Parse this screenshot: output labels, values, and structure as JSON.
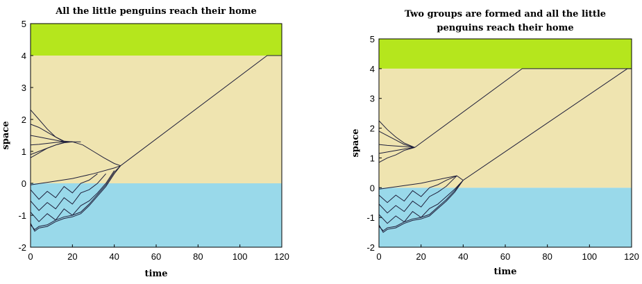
{
  "colors": {
    "land": "#b5e61d",
    "sand": "#efe4b0",
    "sea": "#99d9ea",
    "trajectory": "#1e1e3a"
  },
  "chart_data": [
    {
      "type": "line",
      "title_lines": [
        "All the little penguins reach their home"
      ],
      "xlabel": "time",
      "ylabel": "space",
      "xlim": [
        0,
        120
      ],
      "ylim": [
        -2,
        5
      ],
      "xticks": [
        "0",
        "20",
        "40",
        "60",
        "80",
        "100",
        "120"
      ],
      "yticks": [
        "-2",
        "-1",
        "0",
        "1",
        "2",
        "3",
        "4",
        "5"
      ],
      "bands": [
        {
          "name": "sea",
          "from": -2,
          "to": 0
        },
        {
          "name": "sand",
          "from": 0,
          "to": 4
        },
        {
          "name": "land",
          "from": 4,
          "to": 5
        }
      ],
      "series": [
        {
          "x": [
            0,
            4,
            8,
            12,
            16,
            20,
            24
          ],
          "y": [
            2.3,
            2.0,
            1.7,
            1.45,
            1.3,
            1.3,
            1.3
          ]
        },
        {
          "x": [
            0,
            4,
            8,
            12,
            16,
            20
          ],
          "y": [
            1.85,
            1.75,
            1.6,
            1.45,
            1.32,
            1.3
          ]
        },
        {
          "x": [
            0,
            4,
            8,
            12,
            16,
            20
          ],
          "y": [
            1.5,
            1.45,
            1.4,
            1.35,
            1.3,
            1.3
          ]
        },
        {
          "x": [
            0,
            4,
            8,
            12,
            16,
            20
          ],
          "y": [
            1.2,
            1.22,
            1.25,
            1.28,
            1.3,
            1.3
          ]
        },
        {
          "x": [
            0,
            4,
            8,
            12,
            16,
            20
          ],
          "y": [
            0.9,
            1.0,
            1.1,
            1.2,
            1.27,
            1.3
          ]
        },
        {
          "x": [
            0,
            4,
            8,
            12,
            16
          ],
          "y": [
            0.8,
            0.95,
            1.1,
            1.2,
            1.28
          ]
        },
        {
          "x": [
            20,
            25,
            30,
            35,
            40,
            43
          ],
          "y": [
            1.3,
            1.2,
            1.0,
            0.8,
            0.62,
            0.55
          ]
        },
        {
          "x": [
            0,
            10,
            20,
            30,
            40,
            43
          ],
          "y": [
            -0.05,
            0.05,
            0.15,
            0.3,
            0.48,
            0.55
          ]
        },
        {
          "x": [
            0,
            4,
            8,
            12,
            16,
            20,
            24,
            28,
            32
          ],
          "y": [
            -0.2,
            -0.5,
            -0.25,
            -0.45,
            -0.1,
            -0.3,
            0.0,
            0.1,
            0.3
          ]
        },
        {
          "x": [
            0,
            4,
            8,
            12,
            16,
            20,
            24,
            28,
            32,
            36
          ],
          "y": [
            -0.55,
            -0.85,
            -0.6,
            -0.8,
            -0.45,
            -0.65,
            -0.3,
            -0.2,
            0.0,
            0.3
          ]
        },
        {
          "x": [
            0,
            4,
            8,
            12,
            16,
            20,
            24,
            28,
            32,
            36,
            40
          ],
          "y": [
            -0.9,
            -1.2,
            -0.95,
            -1.15,
            -0.8,
            -1.0,
            -0.7,
            -0.55,
            -0.3,
            0.0,
            0.4
          ]
        },
        {
          "x": [
            0,
            2,
            4,
            8,
            12,
            16,
            20,
            24,
            28,
            32,
            36,
            40,
            43
          ],
          "y": [
            -1.25,
            -1.5,
            -1.4,
            -1.35,
            -1.2,
            -1.1,
            -1.05,
            -0.95,
            -0.7,
            -0.4,
            -0.1,
            0.3,
            0.55
          ]
        },
        {
          "x": [
            0,
            2,
            4,
            8,
            12,
            16,
            20,
            24,
            28,
            32,
            36,
            40,
            43
          ],
          "y": [
            -1.3,
            -1.45,
            -1.35,
            -1.3,
            -1.15,
            -1.05,
            -1.0,
            -0.9,
            -0.65,
            -0.35,
            -0.05,
            0.35,
            0.55
          ]
        },
        {
          "x": [
            43,
            113,
            120
          ],
          "y": [
            0.55,
            4.0,
            4.0
          ]
        }
      ]
    },
    {
      "type": "line",
      "title_lines": [
        "Two groups are formed and all the little",
        "penguins reach their home"
      ],
      "xlabel": "time",
      "ylabel": "space",
      "xlim": [
        0,
        120
      ],
      "ylim": [
        -2,
        5
      ],
      "xticks": [
        "0",
        "20",
        "40",
        "60",
        "80",
        "100",
        "120"
      ],
      "yticks": [
        "-2",
        "-1",
        "0",
        "1",
        "2",
        "3",
        "4",
        "5"
      ],
      "bands": [
        {
          "name": "sea",
          "from": -2,
          "to": 0
        },
        {
          "name": "sand",
          "from": 0,
          "to": 4
        },
        {
          "name": "land",
          "from": 4,
          "to": 5
        }
      ],
      "series": [
        {
          "x": [
            0,
            4,
            8,
            12,
            17
          ],
          "y": [
            2.25,
            1.95,
            1.7,
            1.5,
            1.35
          ]
        },
        {
          "x": [
            0,
            4,
            8,
            12,
            17
          ],
          "y": [
            1.9,
            1.75,
            1.6,
            1.45,
            1.35
          ]
        },
        {
          "x": [
            0,
            4,
            8,
            12,
            17
          ],
          "y": [
            1.45,
            1.42,
            1.4,
            1.38,
            1.35
          ]
        },
        {
          "x": [
            0,
            4,
            8,
            12,
            17
          ],
          "y": [
            1.15,
            1.2,
            1.25,
            1.3,
            1.35
          ]
        },
        {
          "x": [
            0,
            4,
            8,
            12,
            17
          ],
          "y": [
            0.85,
            1.0,
            1.1,
            1.25,
            1.35
          ]
        },
        {
          "x": [
            17,
            68,
            120
          ],
          "y": [
            1.35,
            4.0,
            4.0
          ]
        },
        {
          "x": [
            0,
            10,
            20,
            30,
            37
          ],
          "y": [
            -0.05,
            0.05,
            0.15,
            0.3,
            0.4
          ]
        },
        {
          "x": [
            0,
            4,
            8,
            12,
            16,
            20,
            24,
            28,
            32,
            37
          ],
          "y": [
            -0.25,
            -0.5,
            -0.25,
            -0.45,
            -0.1,
            -0.3,
            0.0,
            0.1,
            0.25,
            0.4
          ]
        },
        {
          "x": [
            0,
            4,
            8,
            12,
            16,
            20,
            24,
            28,
            32,
            37
          ],
          "y": [
            -0.55,
            -0.85,
            -0.6,
            -0.8,
            -0.45,
            -0.65,
            -0.3,
            -0.15,
            0.05,
            0.4
          ]
        },
        {
          "x": [
            0,
            4,
            8,
            12,
            16,
            20,
            24,
            28,
            32,
            36,
            40
          ],
          "y": [
            -0.9,
            -1.2,
            -0.95,
            -1.15,
            -0.8,
            -1.0,
            -0.7,
            -0.55,
            -0.3,
            -0.05,
            0.25
          ]
        },
        {
          "x": [
            0,
            2,
            4,
            8,
            12,
            16,
            20,
            24,
            28,
            32,
            36,
            40
          ],
          "y": [
            -1.25,
            -1.5,
            -1.4,
            -1.35,
            -1.2,
            -1.1,
            -1.05,
            -0.95,
            -0.7,
            -0.45,
            -0.15,
            0.25
          ]
        },
        {
          "x": [
            0,
            2,
            4,
            8,
            12,
            16,
            20,
            24,
            28,
            32,
            36,
            40
          ],
          "y": [
            -1.3,
            -1.45,
            -1.35,
            -1.3,
            -1.15,
            -1.05,
            -1.0,
            -0.9,
            -0.65,
            -0.4,
            -0.1,
            0.25
          ]
        },
        {
          "x": [
            37,
            40
          ],
          "y": [
            0.4,
            0.25
          ]
        },
        {
          "x": [
            40,
            118,
            120
          ],
          "y": [
            0.25,
            4.0,
            4.0
          ]
        }
      ]
    }
  ]
}
